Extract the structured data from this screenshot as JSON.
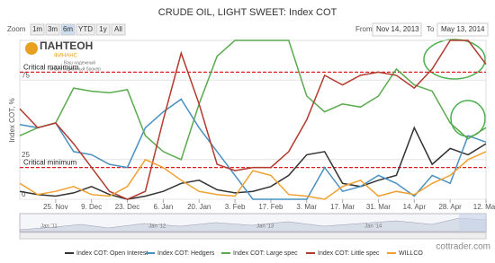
{
  "chart_data": {
    "type": "line",
    "title": "CRUDE OIL, LIGHT SWEET: Index COT",
    "zoom_label": "Zoom",
    "zoom_buttons": [
      "1m",
      "3m",
      "6m",
      "YTD",
      "1y",
      "All"
    ],
    "from_label": "From",
    "from_date": "Nov 14, 2013",
    "to_label": "To",
    "to_date": "May 13, 2014",
    "y_label": "Index COT, %",
    "categories": [
      null,
      null,
      "25. Nov",
      null,
      "9. Dec",
      null,
      "23. Dec",
      null,
      "6. Jan",
      null,
      "20. Jan",
      null,
      "3. Feb",
      null,
      "17. Feb",
      null,
      "3. Mar",
      null,
      "17. Mar",
      null,
      "31. Mar",
      null,
      "14. Apr",
      null,
      "28. Apr",
      null,
      "12. May"
    ],
    "ylim": [
      0,
      100
    ],
    "yticks": [
      0,
      25,
      75
    ],
    "thresholds": [
      {
        "label": "Critical maximum",
        "value": 80
      },
      {
        "label": "Critical minimum",
        "value": 20
      }
    ],
    "series": [
      {
        "name": "Index COT: Open Interest",
        "color": "#333333",
        "values": [
          5,
          3,
          2,
          4,
          8,
          3,
          0,
          2,
          5,
          10,
          12,
          6,
          4,
          5,
          8,
          15,
          28,
          30,
          10,
          8,
          12,
          15,
          45,
          22,
          32,
          28,
          35
        ]
      },
      {
        "name": "Index COT: Hedgers",
        "color": "#4a90c0",
        "values": [
          47,
          45,
          48,
          30,
          28,
          22,
          20,
          45,
          55,
          63,
          45,
          30,
          15,
          0,
          0,
          0,
          0,
          20,
          5,
          8,
          15,
          10,
          2,
          15,
          10,
          40,
          36
        ]
      },
      {
        "name": "Index COT: Large spec",
        "color": "#5aaa4e",
        "values": [
          40,
          45,
          48,
          70,
          68,
          67,
          69,
          40,
          30,
          25,
          60,
          90,
          100,
          100,
          100,
          100,
          65,
          55,
          60,
          58,
          65,
          82,
          72,
          68,
          48,
          38,
          45
        ]
      },
      {
        "name": "Index COT: Little spec",
        "color": "#b23a2e",
        "values": [
          57,
          45,
          48,
          35,
          20,
          5,
          0,
          5,
          50,
          92,
          60,
          22,
          18,
          20,
          20,
          30,
          50,
          78,
          72,
          78,
          80,
          78,
          70,
          82,
          100,
          100,
          85
        ]
      },
      {
        "name": "WILLCO",
        "color": "#f0a030",
        "values": [
          10,
          3,
          5,
          8,
          3,
          2,
          8,
          25,
          20,
          12,
          5,
          3,
          2,
          18,
          15,
          3,
          2,
          0,
          8,
          12,
          2,
          5,
          3,
          10,
          15,
          25,
          30
        ]
      }
    ],
    "navigator_labels": [
      "Jan '11",
      "Jan '12",
      "Jan '13",
      "Jan '14"
    ],
    "logo_title": "ПАНТЕОН",
    "logo_subtitle": "ФИНАНС",
    "logo_tagline_1": "Ваш надежный",
    "logo_tagline_2": "инвестиционный брокер",
    "watermark": "cottrader.com"
  }
}
